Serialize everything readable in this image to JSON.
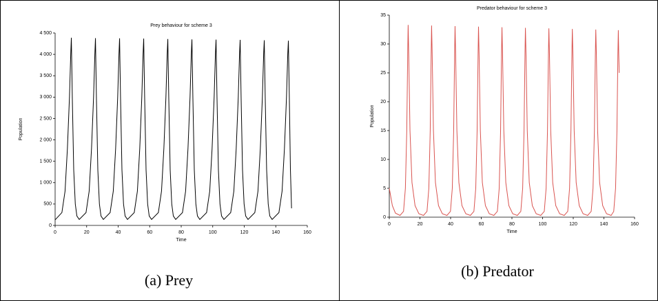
{
  "chart_data": [
    {
      "type": "line",
      "title": "Prey behaviour for scheme 3",
      "xlabel": "Time",
      "ylabel": "Population",
      "color": "#000000",
      "xlim": [
        0,
        160
      ],
      "xticks": [
        0,
        20,
        40,
        60,
        80,
        100,
        120,
        140,
        160
      ],
      "ylim": [
        0,
        4500
      ],
      "yticks": [
        0,
        500,
        {
          "value": 1000,
          "label": "1 000"
        },
        {
          "value": 1500,
          "label": "1 500"
        },
        {
          "value": 2000,
          "label": "2 000"
        },
        {
          "value": 2500,
          "label": "2 500"
        },
        {
          "value": 3000,
          "label": "3 000"
        },
        {
          "value": 3500,
          "label": "3 500"
        },
        {
          "value": 4000,
          "label": "4 000"
        },
        {
          "value": 4500,
          "label": "4 500"
        }
      ],
      "x": [
        0,
        4.3,
        6.3,
        7.8,
        9.1,
        9.9,
        10.3,
        10.9,
        11.8,
        12.8,
        13.8,
        15.3,
        19.6,
        21.6,
        23.1,
        24.4,
        25.2,
        25.6,
        26.2,
        27.1,
        28.1,
        29.1,
        30.6,
        34.9,
        36.9,
        38.4,
        39.7,
        40.5,
        40.9,
        41.5,
        42.4,
        43.4,
        44.4,
        45.9,
        50.2,
        52.2,
        53.7,
        55.0,
        55.8,
        56.2,
        56.8,
        57.7,
        58.7,
        59.7,
        61.2,
        65.5,
        67.5,
        69.0,
        70.3,
        71.1,
        71.5,
        72.1,
        73.0,
        74.0,
        75.0,
        76.5,
        80.8,
        82.8,
        84.3,
        85.6,
        86.4,
        86.8,
        87.4,
        88.3,
        89.3,
        90.3,
        91.8,
        96.1,
        98.1,
        99.6,
        100.9,
        101.7,
        102.1,
        102.7,
        103.6,
        104.6,
        105.6,
        107.1,
        111.4,
        113.4,
        114.9,
        116.2,
        117.0,
        117.4,
        118.0,
        118.9,
        119.9,
        120.9,
        122.4,
        126.7,
        128.7,
        130.2,
        131.5,
        132.3,
        132.7,
        133.3,
        134.2,
        135.2,
        136.2,
        137.7,
        142.0,
        144.0,
        145.5,
        146.8,
        147.6,
        148.0,
        148.6,
        149.3,
        150
      ],
      "values": [
        130,
        300,
        800,
        1800,
        3000,
        4000,
        4390,
        3000,
        1300,
        500,
        220,
        140,
        300,
        800,
        1800,
        3000,
        4000,
        4380,
        3000,
        1300,
        500,
        220,
        140,
        300,
        800,
        1800,
        3000,
        4000,
        4375,
        3000,
        1300,
        500,
        220,
        140,
        300,
        800,
        1800,
        3000,
        4000,
        4370,
        3000,
        1300,
        500,
        220,
        140,
        300,
        800,
        1800,
        3000,
        4000,
        4360,
        3000,
        1300,
        500,
        220,
        140,
        300,
        800,
        1800,
        3000,
        4000,
        4350,
        3000,
        1300,
        500,
        220,
        140,
        300,
        800,
        1800,
        3000,
        4000,
        4345,
        3000,
        1300,
        500,
        220,
        140,
        300,
        800,
        1800,
        3000,
        4000,
        4340,
        3000,
        1300,
        500,
        220,
        140,
        300,
        800,
        1800,
        3000,
        4000,
        4330,
        3000,
        1300,
        500,
        220,
        140,
        300,
        800,
        1800,
        3000,
        4000,
        4320,
        3000,
        1300,
        400
      ]
    },
    {
      "type": "line",
      "title": "Predator behaviour for scheme 3",
      "xlabel": "Time",
      "ylabel": "Population",
      "color": "#d9534f",
      "xlim": [
        0,
        160
      ],
      "xticks": [
        0,
        20,
        40,
        60,
        80,
        100,
        120,
        140,
        160
      ],
      "ylim": [
        0,
        35
      ],
      "yticks": [
        0,
        5,
        10,
        15,
        20,
        25,
        30,
        35
      ],
      "x": [
        0,
        2,
        4,
        7,
        9.3,
        10.5,
        11.4,
        12,
        12.3,
        12.7,
        13.5,
        14.8,
        16.8,
        19.3,
        22.3,
        24.6,
        25.8,
        26.7,
        27.3,
        27.6,
        28.0,
        28.8,
        30.1,
        32.1,
        34.6,
        37.6,
        39.9,
        41.1,
        42.0,
        42.6,
        42.9,
        43.3,
        44.1,
        45.4,
        47.4,
        49.9,
        52.9,
        55.2,
        56.4,
        57.3,
        57.9,
        58.2,
        58.6,
        59.4,
        60.7,
        62.7,
        65.2,
        68.2,
        70.5,
        71.7,
        72.6,
        73.2,
        73.5,
        73.9,
        74.7,
        76.0,
        78.0,
        80.5,
        83.5,
        85.8,
        87.0,
        87.9,
        88.5,
        88.8,
        89.2,
        90.0,
        91.3,
        93.3,
        95.8,
        98.8,
        101.1,
        102.3,
        103.2,
        103.8,
        104.1,
        104.5,
        105.3,
        106.6,
        108.6,
        111.1,
        114.1,
        116.4,
        117.6,
        118.5,
        119.1,
        119.4,
        119.8,
        120.6,
        121.9,
        123.9,
        126.4,
        129.4,
        131.7,
        132.9,
        133.8,
        134.4,
        134.7,
        135.1,
        135.9,
        137.2,
        139.2,
        141.7,
        144.7,
        146.4,
        147.6,
        148.5,
        149.1,
        149.4,
        149.7,
        150
      ],
      "values": [
        5,
        2,
        0.7,
        0.3,
        1,
        5,
        15,
        28,
        33.3,
        28,
        15,
        6,
        2,
        0.6,
        0.3,
        1,
        5,
        15,
        28,
        33.2,
        28,
        15,
        6,
        2,
        0.6,
        0.3,
        1,
        5,
        15,
        28,
        33.1,
        28,
        15,
        6,
        2,
        0.6,
        0.3,
        1,
        5,
        15,
        28,
        33.0,
        28,
        15,
        6,
        2,
        0.6,
        0.3,
        1,
        5,
        15,
        28,
        32.9,
        28,
        15,
        6,
        2,
        0.6,
        0.3,
        1,
        5,
        15,
        28,
        32.8,
        28,
        15,
        6,
        2,
        0.6,
        0.3,
        1,
        5,
        15,
        28,
        32.7,
        28,
        15,
        6,
        2,
        0.6,
        0.3,
        1,
        5,
        15,
        28,
        32.6,
        28,
        15,
        6,
        2,
        0.6,
        0.3,
        1,
        5,
        15,
        28,
        32.5,
        28,
        15,
        6,
        2,
        0.6,
        0.3,
        1,
        5,
        15,
        28,
        32.4,
        28,
        25
      ]
    }
  ],
  "captions": [
    "(a) Prey",
    "(b) Predator"
  ]
}
